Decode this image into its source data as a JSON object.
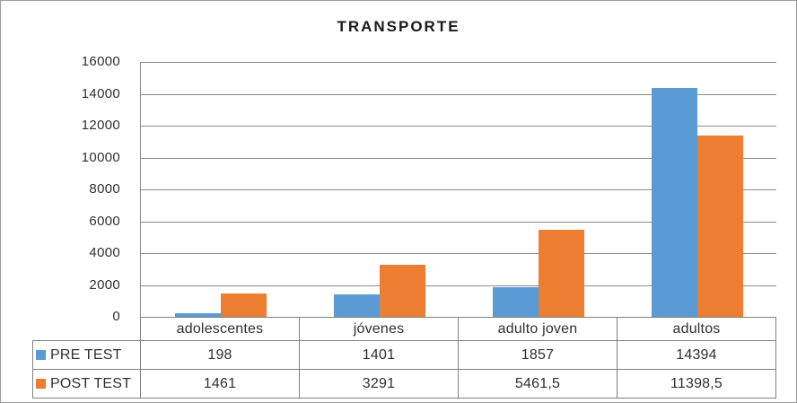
{
  "chart_data": {
    "type": "bar",
    "title": "TRANSPORTE",
    "categories": [
      "adolescentes",
      "jóvenes",
      "adulto joven",
      "adultos"
    ],
    "series": [
      {
        "name": "PRE TEST",
        "color": "#5B9BD5",
        "values": [
          198,
          1401,
          1857,
          14394
        ],
        "values_display": [
          "198",
          "1401",
          "1857",
          "14394"
        ]
      },
      {
        "name": "POST TEST",
        "color": "#ED7D31",
        "values": [
          1461,
          3291,
          5461.5,
          11398.5
        ],
        "values_display": [
          "1461",
          "3291",
          "5461,5",
          "11398,5"
        ]
      }
    ],
    "xlabel": "",
    "ylabel": "",
    "ylim": [
      0,
      16000
    ],
    "yticks": [
      0,
      2000,
      4000,
      6000,
      8000,
      10000,
      12000,
      14000,
      16000
    ],
    "grid": true,
    "legend_position": "left-of-data-table"
  },
  "colors": {
    "pre_test": "#5B9BD5",
    "post_test": "#ED7D31",
    "gridline": "#8a8a8a",
    "table_border": "#808080",
    "chart_border": "#9c9c9c",
    "text": "#303030",
    "title_text": "#1a1a1a",
    "background": "#ffffff"
  }
}
